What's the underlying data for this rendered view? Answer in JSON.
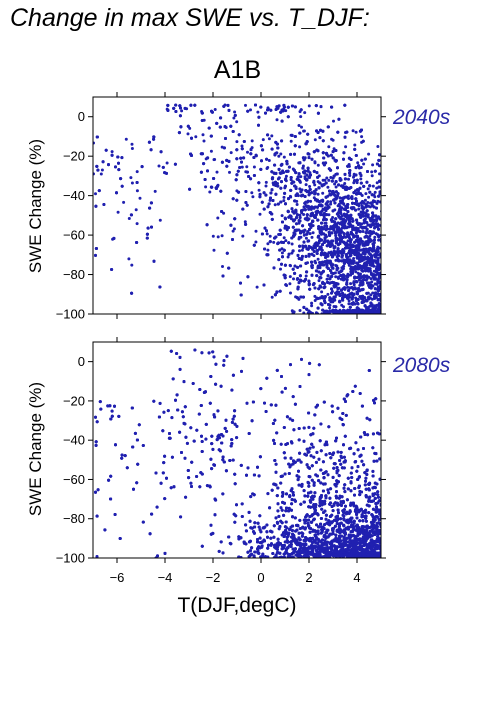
{
  "figure": {
    "suptitle": "Change in max SWE vs. T_DJF:",
    "scenario_title": "A1B",
    "xlabel": "T(DJF,degC)"
  },
  "colors": {
    "points": "#2020b0",
    "period_labels": "#2a2aa8",
    "axes": "#000000"
  },
  "chart_data": [
    {
      "type": "scatter",
      "panel_label": "2040s",
      "ylabel": "SWE Change (%)",
      "xlim": [
        -7,
        5
      ],
      "ylim": [
        -100,
        10
      ],
      "x_ticks": [
        -6,
        -4,
        -2,
        0,
        2,
        4
      ],
      "y_ticks": [
        0,
        -20,
        -40,
        -60,
        -80,
        -100
      ],
      "x_tick_labels_shown": false,
      "point_count_approx": 6000,
      "trend": "Dense cloud between about -2 and 5 degC; SWE losses grow with warmer winters, approaching -100% near 4-5 degC; sparse points near 0% at -7 to -5 degC."
    },
    {
      "type": "scatter",
      "panel_label": "2080s",
      "ylabel": "SWE Change (%)",
      "xlim": [
        -7,
        5
      ],
      "ylim": [
        -100,
        10
      ],
      "x_ticks": [
        -6,
        -4,
        -2,
        0,
        2,
        4
      ],
      "y_ticks": [
        0,
        -20,
        -40,
        -60,
        -80,
        -100
      ],
      "x_tick_labels_shown": true,
      "point_count_approx": 6000,
      "trend": "Shifted toward larger losses: very dense band at -80 to -100% for 0 to 5 degC; scattered points between -10 and -60% across -4 to 4 degC."
    }
  ]
}
